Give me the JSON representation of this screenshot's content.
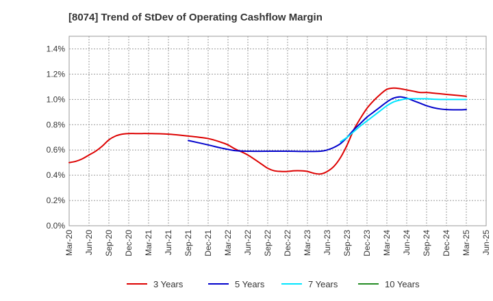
{
  "chart_data": {
    "type": "line",
    "title": "[8074]  Trend of StDev of Operating Cashflow Margin",
    "xlabel": "",
    "ylabel": "",
    "ylim": [
      0,
      1.5
    ],
    "y_ticks": [
      "0.0%",
      "0.2%",
      "0.4%",
      "0.6%",
      "0.8%",
      "1.0%",
      "1.2%",
      "1.4%"
    ],
    "y_tick_values": [
      0,
      0.2,
      0.4,
      0.6,
      0.8,
      1.0,
      1.2,
      1.4
    ],
    "x_ticks": [
      "Mar-20",
      "Jun-20",
      "Sep-20",
      "Dec-20",
      "Mar-21",
      "Jun-21",
      "Sep-21",
      "Dec-21",
      "Mar-22",
      "Jun-22",
      "Sep-22",
      "Dec-22",
      "Mar-23",
      "Jun-23",
      "Sep-23",
      "Dec-23",
      "Mar-24",
      "Jun-24",
      "Sep-24",
      "Dec-24",
      "Mar-25",
      "Jun-25"
    ],
    "grid": true,
    "legend_position": "bottom",
    "series": [
      {
        "name": "3 Years",
        "color": "#dd0000",
        "x": [
          "Mar-20",
          "Apr-20",
          "May-20",
          "Jun-20",
          "Jul-20",
          "Aug-20",
          "Sep-20",
          "Oct-20",
          "Nov-20",
          "Dec-20",
          "Jan-21",
          "Feb-21",
          "Mar-21",
          "Jun-21",
          "Sep-21",
          "Dec-21",
          "Feb-22",
          "Mar-22",
          "Apr-22",
          "Jun-22",
          "Aug-22",
          "Sep-22",
          "Oct-22",
          "Nov-22",
          "Dec-22",
          "Jan-23",
          "Feb-23",
          "Mar-23",
          "Apr-23",
          "May-23",
          "Jun-23",
          "Jul-23",
          "Aug-23",
          "Sep-23",
          "Oct-23",
          "Nov-23",
          "Dec-23",
          "Jan-24",
          "Feb-24",
          "Mar-24",
          "Apr-24",
          "May-24",
          "Jun-24",
          "Jul-24",
          "Aug-24",
          "Sep-24",
          "Oct-24",
          "Nov-24",
          "Dec-24",
          "Jan-25",
          "Feb-25",
          "Mar-25"
        ],
        "values": [
          0.5,
          0.51,
          0.53,
          0.56,
          0.59,
          0.63,
          0.68,
          0.71,
          0.725,
          0.73,
          0.73,
          0.73,
          0.73,
          0.725,
          0.71,
          0.69,
          0.66,
          0.64,
          0.61,
          0.56,
          0.49,
          0.455,
          0.435,
          0.43,
          0.43,
          0.435,
          0.435,
          0.43,
          0.415,
          0.41,
          0.43,
          0.47,
          0.54,
          0.64,
          0.76,
          0.85,
          0.93,
          0.99,
          1.04,
          1.08,
          1.09,
          1.085,
          1.075,
          1.065,
          1.055,
          1.055,
          1.05,
          1.045,
          1.04,
          1.035,
          1.03,
          1.025
        ]
      },
      {
        "name": "5 Years",
        "color": "#0000cc",
        "x": [
          "Sep-21",
          "Dec-21",
          "Feb-22",
          "Apr-22",
          "Jun-22",
          "Sep-22",
          "Dec-22",
          "Mar-23",
          "May-23",
          "Jun-23",
          "Jul-23",
          "Aug-23",
          "Sep-23",
          "Oct-23",
          "Nov-23",
          "Dec-23",
          "Jan-24",
          "Feb-24",
          "Mar-24",
          "Apr-24",
          "May-24",
          "Jun-24",
          "Jul-24",
          "Aug-24",
          "Sep-24",
          "Oct-24",
          "Nov-24",
          "Dec-24",
          "Jan-25",
          "Feb-25",
          "Mar-25"
        ],
        "values": [
          0.675,
          0.64,
          0.615,
          0.595,
          0.59,
          0.59,
          0.59,
          0.588,
          0.59,
          0.6,
          0.62,
          0.65,
          0.7,
          0.76,
          0.81,
          0.86,
          0.9,
          0.94,
          0.98,
          1.01,
          1.02,
          1.01,
          0.99,
          0.97,
          0.95,
          0.935,
          0.925,
          0.92,
          0.918,
          0.918,
          0.92
        ]
      },
      {
        "name": "7 Years",
        "color": "#00e5ff",
        "x": [
          "Aug-23",
          "Sep-23",
          "Oct-23",
          "Nov-23",
          "Dec-23",
          "Jan-24",
          "Feb-24",
          "Mar-24",
          "Apr-24",
          "May-24",
          "Jun-24",
          "Jul-24",
          "Aug-24",
          "Sep-24",
          "Oct-24",
          "Nov-24",
          "Dec-24",
          "Jan-25",
          "Feb-25",
          "Mar-25"
        ],
        "values": [
          0.665,
          0.7,
          0.745,
          0.79,
          0.83,
          0.87,
          0.91,
          0.95,
          0.98,
          0.995,
          1.005,
          1.005,
          1.005,
          1.005,
          1.002,
          1.0,
          1.0,
          1.0,
          1.0,
          1.0
        ]
      },
      {
        "name": "10 Years",
        "color": "#228b22",
        "x": [],
        "values": []
      }
    ]
  }
}
